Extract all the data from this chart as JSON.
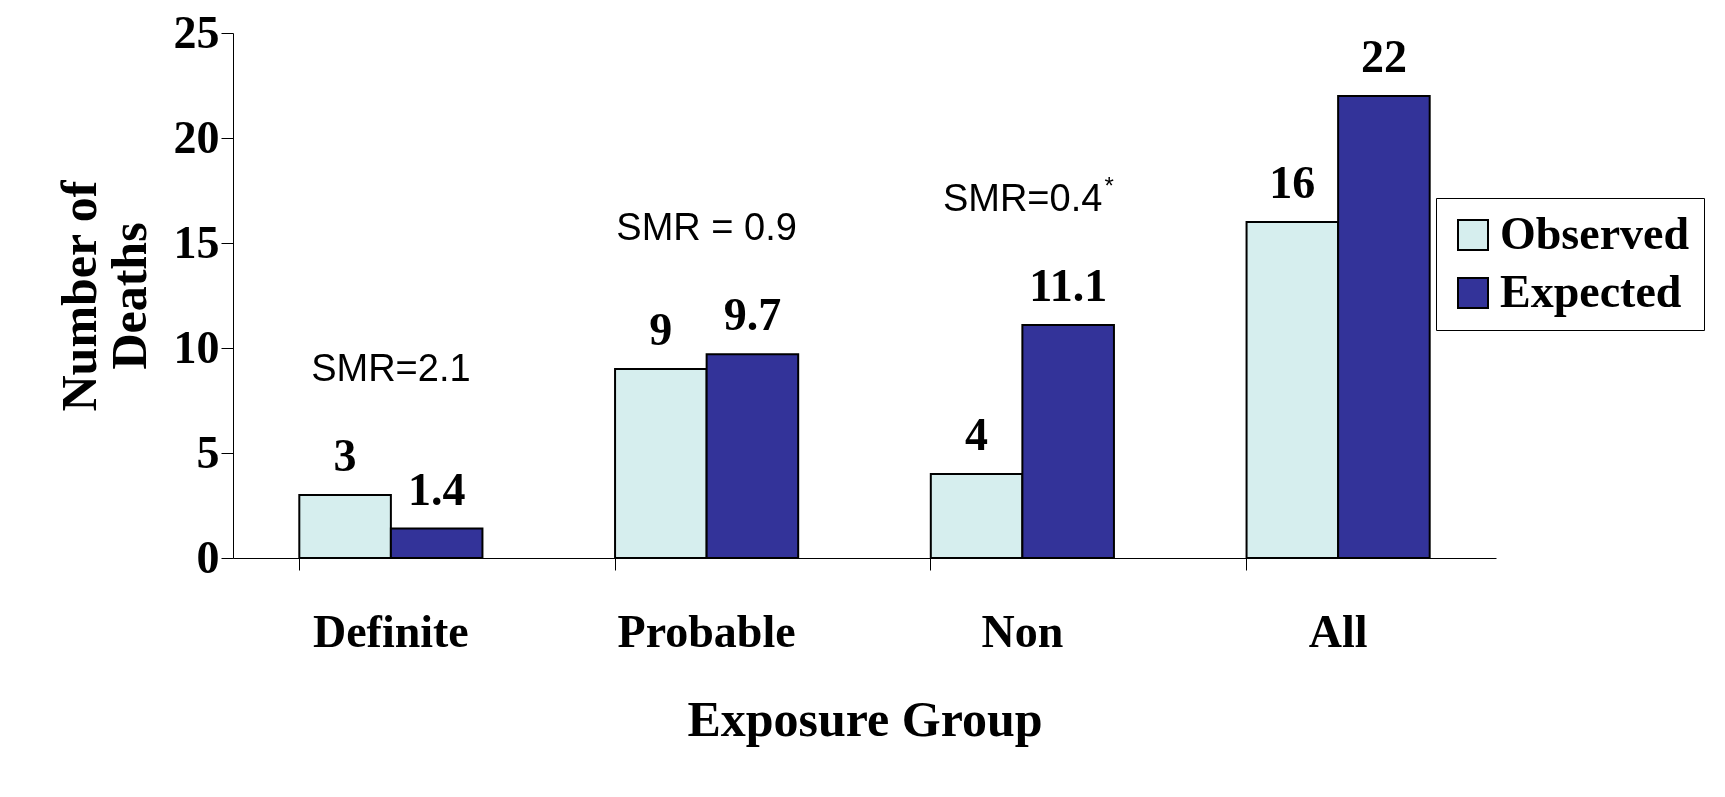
{
  "chart_data": {
    "type": "bar",
    "xlabel": "Exposure Group",
    "ylabel": "Number of Deaths",
    "categories": [
      "Definite",
      "Probable",
      "Non",
      "All"
    ],
    "series": [
      {
        "name": "Observed",
        "color": "#d6eeee",
        "values": [
          3,
          9,
          4,
          16
        ]
      },
      {
        "name": "Expected",
        "color": "#333399",
        "values": [
          1.4,
          9.7,
          11.1,
          22
        ]
      }
    ],
    "ylim": [
      0,
      25
    ],
    "yticks": [
      0,
      5,
      10,
      15,
      20,
      25
    ],
    "grid": false,
    "legend": "right",
    "data_labels": true,
    "annotations": [
      "SMR=2.1",
      "SMR = 0.9",
      "SMR=0.4$^{*}$"
    ]
  }
}
